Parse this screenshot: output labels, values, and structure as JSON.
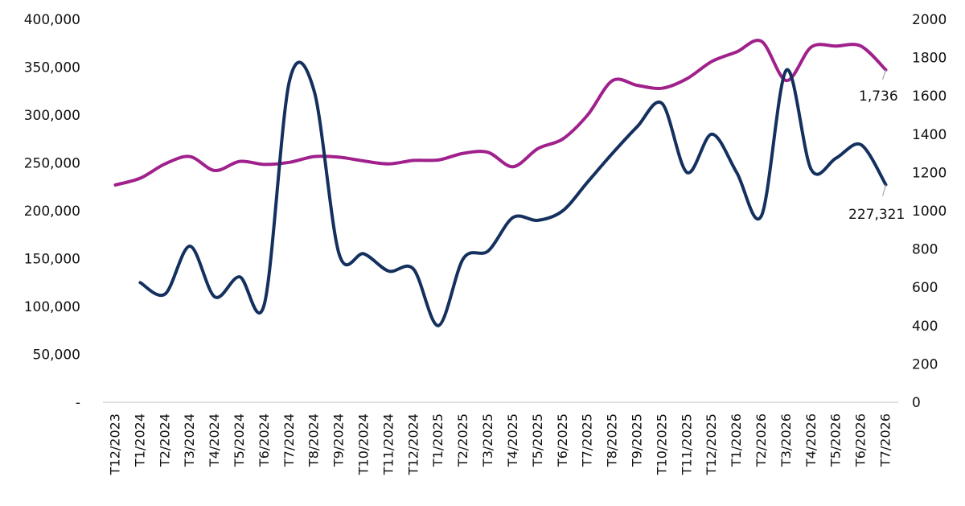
{
  "chart_data": {
    "type": "line",
    "title": "",
    "xlabel": "",
    "ylabel": "",
    "y2label": "",
    "grid": false,
    "legend": "none",
    "categories": [
      "T12/2023",
      "T1/2024",
      "T2/2024",
      "T3/2024",
      "T4/2024",
      "T5/2024",
      "T6/2024",
      "T7/2024",
      "T8/2024",
      "T9/2024",
      "T10/2024",
      "T11/2024",
      "T12/2024",
      "T1/2025",
      "T2/2025",
      "T3/2025",
      "T4/2025",
      "T5/2025",
      "T6/2025",
      "T7/2025",
      "T8/2025",
      "T9/2025",
      "T10/2025",
      "T11/2025",
      "T12/2025",
      "T1/2026",
      "T2/2026",
      "T3/2026",
      "T4/2026",
      "T5/2026",
      "T6/2026",
      "T7/2026"
    ],
    "y_left": {
      "ylim": [
        0,
        400000
      ],
      "ticks": [
        "-",
        "50,000",
        "100,000",
        "150,000",
        "200,000",
        "250,000",
        "300,000",
        "350,000",
        "400,000"
      ]
    },
    "y_right": {
      "ylim": [
        0,
        2000
      ],
      "ticks": [
        "0",
        "200",
        "400",
        "600",
        "800",
        "1000",
        "1200",
        "1400",
        "1600",
        "1800",
        "2000"
      ]
    },
    "series": [
      {
        "axis": "left",
        "color": "#14305e",
        "values": [
          null,
          125000,
          113000,
          163000,
          110000,
          131000,
          103000,
          335000,
          325000,
          155000,
          155000,
          137000,
          139000,
          80000,
          150000,
          158000,
          193000,
          190000,
          200000,
          230000,
          260000,
          288000,
          312000,
          240000,
          280000,
          240000,
          195000,
          347000,
          243000,
          255000,
          269000,
          227321
        ],
        "end_label": "227,321"
      },
      {
        "axis": "right",
        "color": "#a0208c",
        "values": [
          1135,
          1170,
          1245,
          1283,
          1210,
          1258,
          1242,
          1253,
          1283,
          1280,
          1260,
          1245,
          1263,
          1265,
          1300,
          1305,
          1230,
          1325,
          1375,
          1500,
          1680,
          1655,
          1640,
          1690,
          1780,
          1830,
          1885,
          1680,
          1855,
          1860,
          1860,
          1736
        ],
        "end_label": "1,736"
      }
    ]
  }
}
